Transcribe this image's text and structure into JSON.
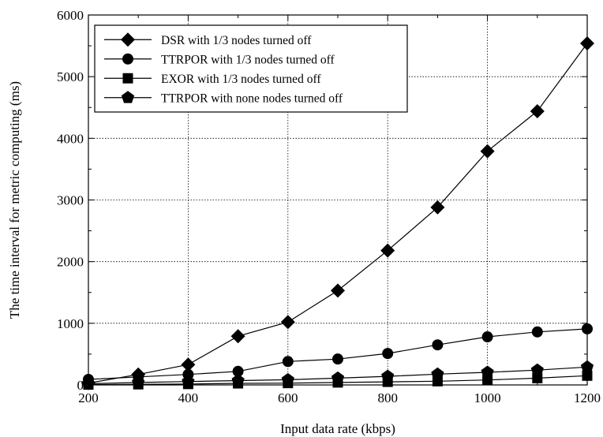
{
  "chart_data": {
    "type": "line",
    "title": "",
    "xlabel": "Input data rate (kbps)",
    "ylabel": "The time interval for metric computing (ms)",
    "xlim": [
      200,
      1200
    ],
    "ylim": [
      0,
      6000
    ],
    "xticks": [
      200,
      400,
      600,
      800,
      1000,
      1200
    ],
    "yticks": [
      0,
      1000,
      2000,
      3000,
      4000,
      5000,
      6000
    ],
    "grid": true,
    "legend_position": "top-left",
    "x": [
      200,
      300,
      400,
      500,
      600,
      700,
      800,
      900,
      1000,
      1100,
      1200
    ],
    "series": [
      {
        "name": "DSR with 1/3 nodes turned off",
        "marker": "diamond",
        "values": [
          30,
          170,
          330,
          790,
          1020,
          1530,
          2180,
          2880,
          3790,
          4440,
          5540
        ]
      },
      {
        "name": "TTRPOR with 1/3 nodes turned off",
        "marker": "circle",
        "values": [
          90,
          130,
          170,
          220,
          380,
          420,
          510,
          650,
          780,
          860,
          910
        ]
      },
      {
        "name": "EXOR with 1/3 nodes turned off",
        "marker": "square",
        "values": [
          5,
          10,
          15,
          25,
          30,
          40,
          50,
          60,
          80,
          110,
          150
        ]
      },
      {
        "name": "TTRPOR with none nodes  turned off",
        "marker": "pentagon",
        "values": [
          20,
          40,
          55,
          70,
          85,
          110,
          140,
          175,
          205,
          240,
          290
        ]
      }
    ]
  }
}
